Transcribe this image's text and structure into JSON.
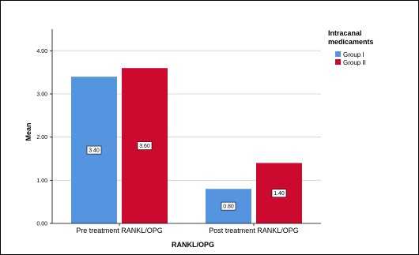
{
  "chart_data": {
    "type": "bar",
    "categories": [
      "Pre treatment RANKL/OPG",
      "Post treatment RANKL/OPG"
    ],
    "series": [
      {
        "name": "Group I",
        "values": [
          3.4,
          0.8
        ],
        "color": "#5595e0"
      },
      {
        "name": "Group II",
        "values": [
          3.6,
          1.4
        ],
        "color": "#cc0a30"
      }
    ],
    "data_labels": [
      [
        "3.40",
        "0.80"
      ],
      [
        "3.60",
        "1.40"
      ]
    ],
    "xlabel": "RANKL/OPG",
    "ylabel": "Mean",
    "ylim": [
      0,
      4.5
    ],
    "yticks": [
      0,
      1,
      2,
      3,
      4
    ],
    "ytick_labels": [
      "0.00",
      "1.00",
      "2.00",
      "3.00",
      "4.00"
    ],
    "grid": true,
    "legend": {
      "title_lines": [
        "Intracanal",
        "medicaments"
      ],
      "placement": "top-right"
    }
  }
}
